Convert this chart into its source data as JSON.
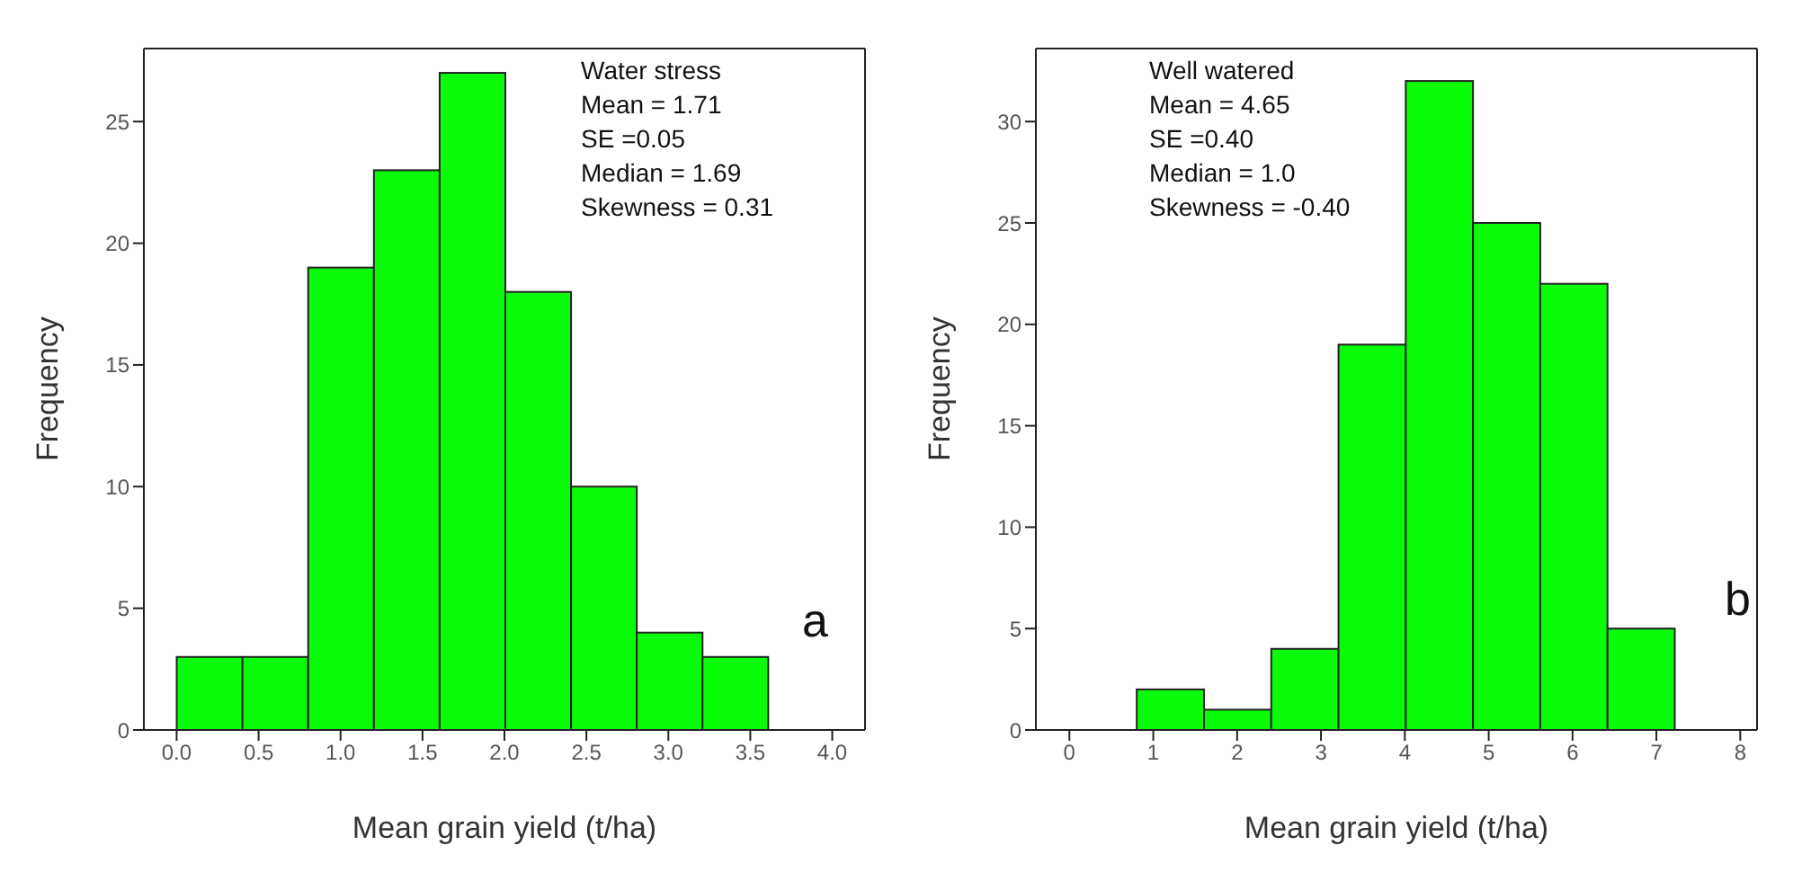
{
  "chart_data": [
    {
      "type": "histogram",
      "xlabel": "Mean grain yield (t/ha)",
      "ylabel": "Frequency",
      "bins": [
        0,
        0.4,
        0.8,
        1.2,
        1.6,
        2.0,
        2.4,
        2.8,
        3.2,
        3.6
      ],
      "values": [
        3,
        3,
        19,
        23,
        27,
        18,
        10,
        4,
        3
      ],
      "color": "#0afc0a",
      "xlim": [
        -0.2,
        4.2
      ],
      "xticks": [
        {
          "value": 0,
          "label": "0.0"
        },
        0.5,
        {
          "value": 1,
          "label": "1.0"
        },
        1.5,
        {
          "value": 2,
          "label": "2.0"
        },
        2.5,
        {
          "value": 3,
          "label": "3.0"
        },
        3.5,
        {
          "value": 4,
          "label": "4.0"
        }
      ],
      "ylim": [
        0,
        28
      ],
      "yticks": [
        0,
        5,
        10,
        15,
        20,
        25
      ],
      "grid": false,
      "legend": false,
      "annotations": [
        "Water stress",
        "Mean = 1.71",
        "SE =0.05",
        "Median = 1.69",
        "Skewness = 0.31",
        "a"
      ]
    },
    {
      "type": "histogram",
      "xlabel": "Mean grain yield (t/ha)",
      "ylabel": "Frequency",
      "bins": [
        0.8,
        1.6,
        2.4,
        3.2,
        4.0,
        4.8,
        5.6,
        6.4,
        7.2
      ],
      "values": [
        2,
        1,
        4,
        19,
        32,
        25,
        22,
        5
      ],
      "color": "#0afc0a",
      "xlim": [
        -0.4,
        8.2
      ],
      "xticks": [
        0,
        1,
        2,
        3,
        4,
        5,
        6,
        7,
        8
      ],
      "ylim": [
        0,
        33.6
      ],
      "yticks": [
        0,
        5,
        10,
        15,
        20,
        25,
        30
      ],
      "grid": false,
      "legend": false,
      "annotations": [
        "Well watered",
        "Mean = 4.65",
        "SE =0.40",
        "Median = 1.0",
        "Skewness = -0.40",
        "b"
      ]
    }
  ]
}
